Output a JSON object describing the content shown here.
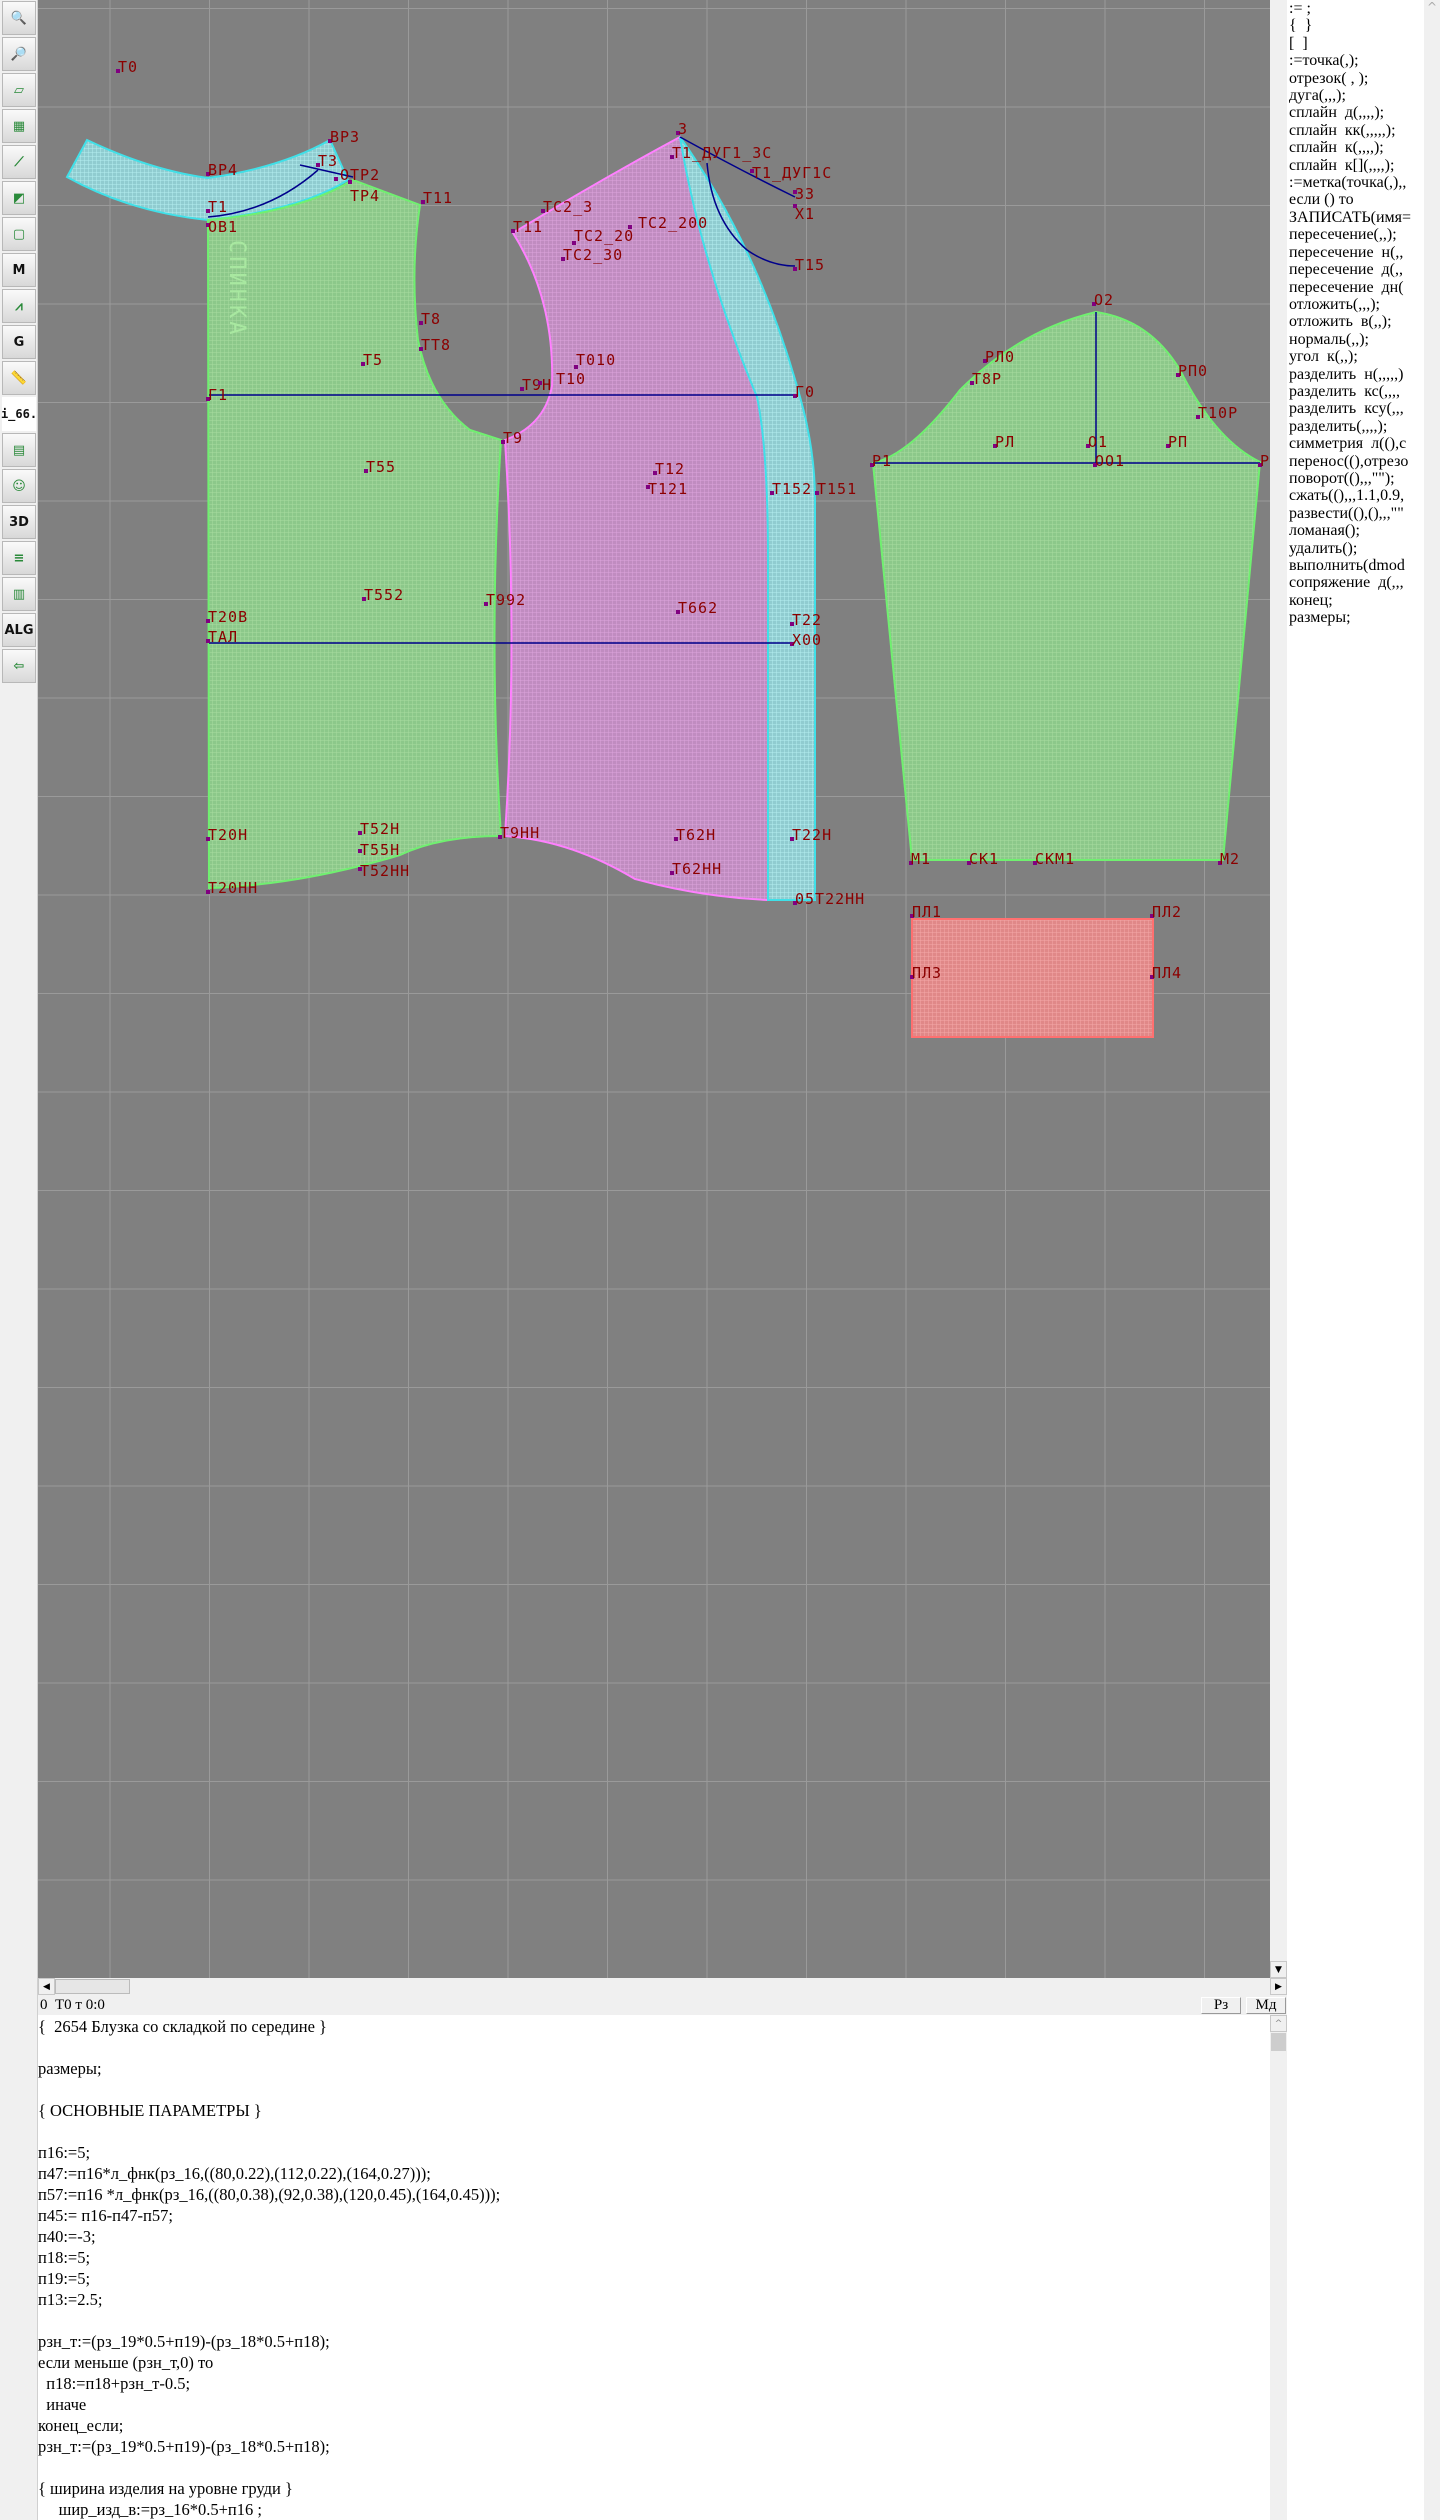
{
  "toolbar": {
    "items": [
      {
        "icon": "zoom-in-icon"
      },
      {
        "icon": "zoom-out-icon"
      },
      {
        "icon": "pieces-icon"
      },
      {
        "icon": "grid-icon"
      },
      {
        "icon": "line-tool-icon"
      },
      {
        "icon": "layout-map-icon"
      },
      {
        "icon": "contour-icon"
      },
      {
        "icon": "model-icon",
        "text": "M"
      },
      {
        "icon": "compass-icon"
      },
      {
        "icon": "grading-icon",
        "text": "G"
      },
      {
        "icon": "ruler-icon"
      },
      {
        "icon": "file-name",
        "text": "i_66."
      },
      {
        "icon": "table-icon"
      },
      {
        "icon": "avatar-icon"
      },
      {
        "icon": "3d-icon",
        "text": "3D"
      },
      {
        "icon": "list-icon"
      },
      {
        "icon": "books-icon"
      },
      {
        "icon": "algorithm-icon",
        "text": "ALG"
      },
      {
        "icon": "exit-icon"
      }
    ]
  },
  "colors": {
    "canvas": "#808080",
    "grid": "#9a9a9a",
    "front": "#8cc88a",
    "back": "#c48cc4",
    "placket": "#9ad6dc",
    "pocket": "#e88c8c",
    "label": "#8b0000",
    "construction": "#00008b"
  },
  "canvas": {
    "piece_label": "СПИНКА",
    "labels": [
      "Т0",
      "ВР3",
      "ВР4",
      "Т1",
      "ОВ1",
      "Т3",
      "ОТР2",
      "ТР4",
      "Т11",
      "Т8",
      "ТТ8",
      "Т5",
      "Г1",
      "Т55",
      "Т552",
      "Т20В",
      "ТАЛ",
      "Т9",
      "Т992",
      "Т9Н",
      "Т10",
      "Т010",
      "Т11",
      "ТС2_3",
      "ТС2_30",
      "ТС2_20",
      "ТС2_200",
      "3",
      "Т1_ДУГ1_3С",
      "Т1_ДУГ1С",
      "33",
      "Х1",
      "Т15",
      "Г0",
      "Т12",
      "Т121",
      "Т152",
      "Т151",
      "Т662",
      "Т22",
      "Х00",
      "Т20Н",
      "Т52Н",
      "Т55Н",
      "Т52НН",
      "Т20НН",
      "Т9НН",
      "Т62Н",
      "Т62НН",
      "Т22Н",
      "05Т22НН",
      "О2",
      "РЛ0",
      "Т8Р",
      "РП0",
      "Т10Р",
      "РЛ",
      "О1",
      "РП",
      "ОО1",
      "Р1",
      "Р",
      "М1",
      "СК1",
      "СКМ1",
      "М2",
      "ПЛ1",
      "ПЛ2",
      "ПЛ3",
      "ПЛ4"
    ]
  },
  "snippets": [
    ":= ;",
    "{  }",
    "[  ]",
    ":=точка(,);",
    "отрезок( , );",
    "дуга(,,,);",
    "сплайн  д(,,,,);",
    "сплайн  кк(,,,,,);",
    "сплайн  к(,,,,);",
    "сплайн  к[](,,,,);",
    ":=метка(точка(,),,",
    "если () то",
    "ЗАПИСАТЬ(имя=",
    "пересечение(,,);",
    "пересечение  н(,,",
    "пересечение  д(,,",
    "пересечение  дн(",
    "отложить(,,,);",
    "отложить  в(,,);",
    "нормаль(,,);",
    "угол  к(,,);",
    "разделить  н(,,,,,)",
    "разделить  кс(,,,,",
    "разделить  ксу(,,,",
    "разделить(,,,,);",
    "симметрия  л((),с",
    "перенос((),отрезо",
    "поворот((),,,\"\");",
    "сжать((),,,1.1,0.9,",
    "развести((),(),,,\"\"",
    "ломаная();",
    "удалить();",
    "выполнить(dmod",
    "сопряжение  д(,,,",
    "конец;",
    "размеры;"
  ],
  "status": {
    "text": "0  Т0 т 0:0",
    "btn_rz": "Рз",
    "btn_md": "Мд"
  },
  "code": [
    "{  2654 Блузка со складкой по середине }",
    "",
    "размеры;",
    "",
    "{ ОСНОВНЫЕ ПАРАМЕТРЫ }",
    "",
    "п16:=5;",
    "п47:=п16*л_фнк(рз_16,((80,0.22),(112,0.22),(164,0.27)));",
    "п57:=п16 *л_фнк(рз_16,((80,0.38),(92,0.38),(120,0.45),(164,0.45)));",
    "п45:= п16-п47-п57;",
    "п40:=-3;",
    "п18:=5;",
    "п19:=5;",
    "п13:=2.5;",
    "",
    "рзн_т:=(рз_19*0.5+п19)-(рз_18*0.5+п18);",
    "если меньше (рзн_т,0) то",
    "  п18:=п18+рзн_т-0.5;",
    "  иначе",
    "конец_если;",
    "рзн_т:=(рз_19*0.5+п19)-(рз_18*0.5+п18);",
    "",
    "{ ширина изделия на уровне груди }",
    "     шир_изд_в:=рз_16*0.5+п16 ;"
  ]
}
